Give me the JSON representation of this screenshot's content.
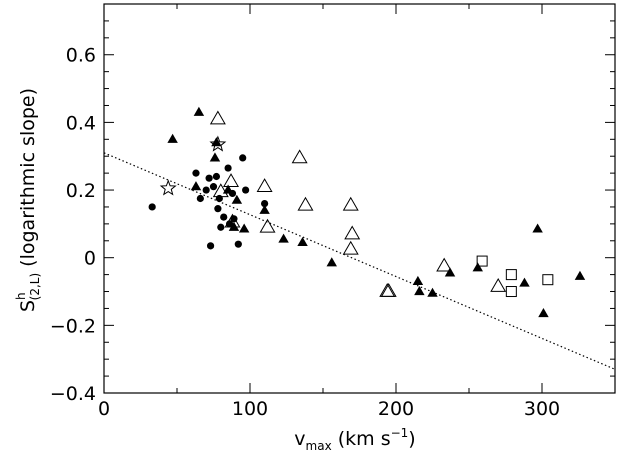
{
  "chart_data": {
    "type": "scatter",
    "xlim": [
      0,
      350
    ],
    "ylim": [
      -0.4,
      0.75
    ],
    "x_ticks": [
      "0",
      "100",
      "200",
      "300"
    ],
    "y_ticks": [
      "−0.4",
      "−0.2",
      "0",
      "0.2",
      "0.4",
      "0.6"
    ],
    "xlabel": {
      "main": "v",
      "subscript": "max",
      "units_open": " (km s",
      "units_superscript": "−1",
      "units_close": ")"
    },
    "ylabel": {
      "main": "S",
      "superscript": "h",
      "subscript": "(2,L)",
      "rest": "  (logarithmic slope)"
    },
    "fit_line": {
      "style": "dotted",
      "points": [
        [
          0,
          0.31
        ],
        [
          350,
          -0.33
        ]
      ]
    },
    "series": [
      {
        "marker": "filled-circle",
        "points": [
          [
            33,
            0.15
          ],
          [
            63,
            0.25
          ],
          [
            66,
            0.175
          ],
          [
            70,
            0.2
          ],
          [
            72,
            0.235
          ],
          [
            73,
            0.035
          ],
          [
            75,
            0.21
          ],
          [
            77,
            0.24
          ],
          [
            78,
            0.145
          ],
          [
            79,
            0.175
          ],
          [
            80,
            0.09
          ],
          [
            82,
            0.12
          ],
          [
            85,
            0.265
          ],
          [
            86,
            0.1
          ],
          [
            88,
            0.19
          ],
          [
            89,
            0.115
          ],
          [
            92,
            0.04
          ],
          [
            95,
            0.295
          ],
          [
            97,
            0.2
          ],
          [
            110,
            0.16
          ]
        ]
      },
      {
        "marker": "filled-triangle",
        "points": [
          [
            47,
            0.35
          ],
          [
            63,
            0.21
          ],
          [
            65,
            0.43
          ],
          [
            76,
            0.295
          ],
          [
            77,
            0.34
          ],
          [
            85,
            0.2
          ],
          [
            89,
            0.09
          ],
          [
            91,
            0.17
          ],
          [
            96,
            0.085
          ],
          [
            110,
            0.14
          ],
          [
            123,
            0.055
          ],
          [
            136,
            0.045
          ],
          [
            156,
            -0.015
          ],
          [
            215,
            -0.07
          ],
          [
            216,
            -0.1
          ],
          [
            225,
            -0.105
          ],
          [
            237,
            -0.045
          ],
          [
            256,
            -0.03
          ],
          [
            288,
            -0.075
          ],
          [
            297,
            0.085
          ],
          [
            301,
            -0.165
          ],
          [
            326,
            -0.055
          ]
        ]
      },
      {
        "marker": "open-triangle",
        "points": [
          [
            78,
            0.41
          ],
          [
            80,
            0.195
          ],
          [
            87,
            0.225
          ],
          [
            88,
            0.105
          ],
          [
            110,
            0.21
          ],
          [
            112,
            0.09
          ],
          [
            134,
            0.295
          ],
          [
            138,
            0.155
          ],
          [
            169,
            0.155
          ],
          [
            170,
            0.07
          ],
          [
            169,
            0.025
          ],
          [
            194,
            -0.1
          ],
          [
            195,
            -0.1
          ],
          [
            233,
            -0.025
          ],
          [
            270,
            -0.085
          ]
        ]
      },
      {
        "marker": "open-square",
        "points": [
          [
            259,
            -0.01
          ],
          [
            279,
            -0.05
          ],
          [
            279,
            -0.1
          ],
          [
            304,
            -0.065
          ]
        ]
      },
      {
        "marker": "open-star",
        "points": [
          [
            44,
            0.205
          ],
          [
            78,
            0.335
          ]
        ]
      }
    ]
  }
}
